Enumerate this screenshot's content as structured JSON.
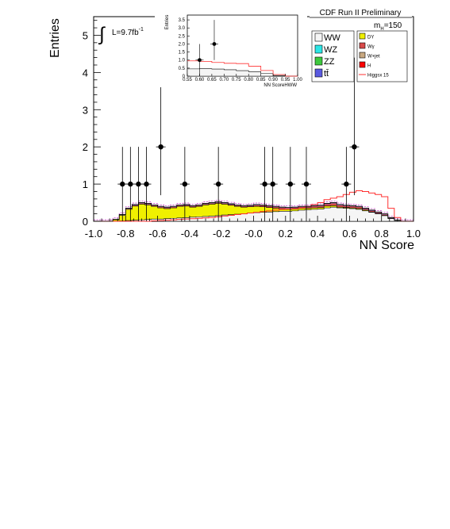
{
  "header": {
    "label": "CDF Run II Preliminary",
    "mass": "m",
    "mass_sub": "H",
    "mass_value": "=150",
    "lumi_label": "L=9.7fb",
    "lumi_sup": "-1"
  },
  "legend": {
    "left": [
      {
        "name": "WW",
        "color": "#f5f5f5"
      },
      {
        "name": "WZ",
        "color": "#2ce6e6"
      },
      {
        "name": "ZZ",
        "color": "#3ec83e"
      },
      {
        "name": "tt̄",
        "color": "#5a5ae0"
      }
    ],
    "right": [
      {
        "name": "DY",
        "color": "#f0f000"
      },
      {
        "name": "Wγ",
        "color": "#d84a4a"
      },
      {
        "name": "W+jet",
        "color": "#c8a880"
      },
      {
        "name": "H",
        "color": "#ff0000"
      },
      {
        "name": "Higgsx 15",
        "color": "#ff3030",
        "line": true
      }
    ]
  },
  "colors": {
    "ww": "#f5f5f5",
    "wz": "#2ce6e6",
    "zz": "#3ec83e",
    "tt": "#5a5ae0",
    "dy": "#f0f000",
    "wgamma": "#d84a4a",
    "wjet": "#c8a880",
    "higgs": "#ff0000",
    "higgs_line": "#ff3030",
    "syst": "#c020c0"
  },
  "chart_data": [
    {
      "type": "histogram",
      "xlabel": "NN Score",
      "ylabel": "Entries",
      "xlim": [
        -1.0,
        1.0
      ],
      "ylim": [
        0,
        5.5
      ],
      "x_ticks": [
        "-1.0",
        "-0.8",
        "-0.6",
        "-0.4",
        "-0.2",
        "-0.0",
        "0.2",
        "0.4",
        "0.6",
        "0.8",
        "1.0"
      ],
      "y_ticks": [
        "0",
        "1",
        "2",
        "3",
        "4",
        "5"
      ],
      "bin_edges": [
        -1.0,
        -0.96,
        -0.92,
        -0.88,
        -0.84,
        -0.8,
        -0.76,
        -0.72,
        -0.68,
        -0.64,
        -0.6,
        -0.56,
        -0.52,
        -0.48,
        -0.44,
        -0.4,
        -0.36,
        -0.32,
        -0.28,
        -0.24,
        -0.2,
        -0.16,
        -0.12,
        -0.08,
        -0.04,
        0.0,
        0.04,
        0.08,
        0.12,
        0.16,
        0.2,
        0.24,
        0.28,
        0.32,
        0.36,
        0.4,
        0.44,
        0.48,
        0.52,
        0.56,
        0.6,
        0.64,
        0.68,
        0.72,
        0.76,
        0.8,
        0.84,
        0.88,
        0.92,
        0.96,
        1.0
      ],
      "background_total": [
        0,
        0,
        0,
        0.05,
        0.18,
        0.35,
        0.45,
        0.5,
        0.48,
        0.44,
        0.4,
        0.38,
        0.4,
        0.44,
        0.45,
        0.42,
        0.44,
        0.48,
        0.5,
        0.52,
        0.5,
        0.47,
        0.44,
        0.42,
        0.43,
        0.45,
        0.44,
        0.42,
        0.4,
        0.38,
        0.37,
        0.38,
        0.4,
        0.4,
        0.42,
        0.43,
        0.48,
        0.5,
        0.45,
        0.43,
        0.42,
        0.4,
        0.35,
        0.3,
        0.25,
        0.2,
        0.1,
        0.03,
        0,
        0
      ],
      "ww": [
        0,
        0,
        0,
        0,
        0.01,
        0.02,
        0.03,
        0.04,
        0.05,
        0.06,
        0.06,
        0.07,
        0.08,
        0.09,
        0.1,
        0.11,
        0.12,
        0.13,
        0.14,
        0.15,
        0.17,
        0.18,
        0.19,
        0.2,
        0.22,
        0.23,
        0.24,
        0.25,
        0.26,
        0.27,
        0.27,
        0.28,
        0.3,
        0.31,
        0.32,
        0.33,
        0.36,
        0.38,
        0.36,
        0.35,
        0.34,
        0.32,
        0.28,
        0.24,
        0.2,
        0.15,
        0.07,
        0.02,
        0,
        0
      ],
      "dy": [
        0,
        0,
        0,
        0.04,
        0.15,
        0.3,
        0.38,
        0.42,
        0.39,
        0.34,
        0.3,
        0.27,
        0.28,
        0.31,
        0.31,
        0.27,
        0.28,
        0.31,
        0.32,
        0.33,
        0.29,
        0.25,
        0.21,
        0.18,
        0.17,
        0.17,
        0.15,
        0.12,
        0.09,
        0.06,
        0.05,
        0.05,
        0.05,
        0.04,
        0.04,
        0.04,
        0.05,
        0.04,
        0.02,
        0.02,
        0.02,
        0.02,
        0.02,
        0.01,
        0.01,
        0.01,
        0,
        0,
        0,
        0
      ],
      "higgs_x15": [
        0,
        0,
        0,
        0,
        0,
        0,
        0,
        0,
        0,
        0.01,
        0.02,
        0.03,
        0.04,
        0.05,
        0.06,
        0.07,
        0.08,
        0.09,
        0.1,
        0.12,
        0.14,
        0.16,
        0.18,
        0.2,
        0.22,
        0.24,
        0.26,
        0.28,
        0.3,
        0.32,
        0.33,
        0.34,
        0.36,
        0.4,
        0.45,
        0.5,
        0.58,
        0.62,
        0.66,
        0.72,
        0.78,
        0.82,
        0.8,
        0.76,
        0.72,
        0.66,
        0.35,
        0.1,
        0,
        0
      ],
      "data": {
        "x": [
          -0.82,
          -0.77,
          -0.72,
          -0.67,
          -0.58,
          -0.43,
          -0.22,
          0.07,
          0.12,
          0.23,
          0.33,
          0.58,
          0.63
        ],
        "y": [
          1,
          1,
          1,
          1,
          2,
          1,
          1,
          1,
          1,
          1,
          1,
          1,
          2
        ]
      }
    },
    {
      "type": "histogram",
      "title": "inset",
      "xlabel": "NN ScoreHWW",
      "ylabel": "Entries",
      "xlim": [
        0.55,
        1.0
      ],
      "ylim": [
        0,
        3.8
      ],
      "x_ticks": [
        "0.55",
        "0.60",
        "0.65",
        "0.70",
        "0.75",
        "0.80",
        "0.85",
        "0.90",
        "0.95",
        "1.00"
      ],
      "y_ticks": [
        "0",
        "0.5",
        "1.0",
        "1.5",
        "2.0",
        "2.5",
        "3.0",
        "3.5"
      ],
      "bin_edges": [
        0.55,
        0.6,
        0.65,
        0.7,
        0.75,
        0.8,
        0.85,
        0.9,
        0.95,
        1.0
      ],
      "background_total": [
        0.45,
        0.46,
        0.44,
        0.4,
        0.34,
        0.28,
        0.16,
        0.04,
        0
      ],
      "higgs_x15": [
        0.95,
        0.92,
        0.85,
        0.8,
        0.78,
        0.62,
        0.35,
        0.1,
        0
      ],
      "data": {
        "x": [
          0.6,
          0.66
        ],
        "y": [
          1,
          2
        ]
      }
    }
  ]
}
